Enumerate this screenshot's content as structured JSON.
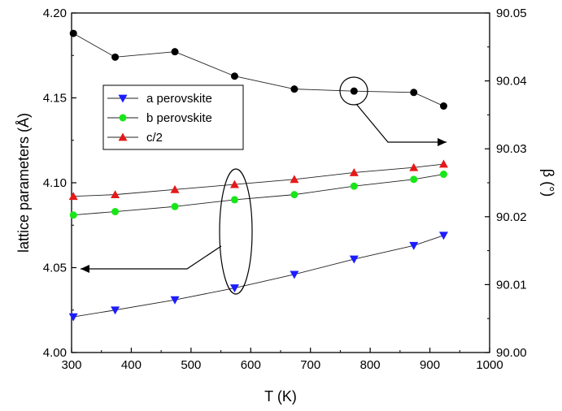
{
  "chart_data": {
    "type": "scatter",
    "x_axis": {
      "label": "T (K)",
      "range": [
        300,
        1000
      ],
      "ticks": [
        300,
        400,
        500,
        600,
        700,
        800,
        900,
        1000
      ]
    },
    "y_left": {
      "label": "lattice parameters (Å)",
      "range": [
        4.0,
        4.2
      ],
      "ticks": [
        "4.00",
        "4.05",
        "4.10",
        "4.15",
        "4.20"
      ]
    },
    "y_right": {
      "label": "β (°)",
      "range": [
        90.0,
        90.05
      ],
      "ticks": [
        "90.00",
        "90.01",
        "90.02",
        "90.03",
        "90.04",
        "90.05"
      ]
    },
    "grid": false,
    "legend_position": "upper-left",
    "series": [
      {
        "name": "a perovskite",
        "axis": "left",
        "marker": "triangle-down",
        "color": "#1c1cff",
        "x": [
          303,
          373,
          473,
          573,
          673,
          773,
          873,
          923
        ],
        "y": [
          4.021,
          4.025,
          4.031,
          4.038,
          4.046,
          4.055,
          4.063,
          4.069
        ]
      },
      {
        "name": "b perovskite",
        "axis": "left",
        "marker": "circle",
        "color": "#19e619",
        "x": [
          303,
          373,
          473,
          573,
          673,
          773,
          873,
          923
        ],
        "y": [
          4.081,
          4.083,
          4.086,
          4.09,
          4.093,
          4.098,
          4.102,
          4.105
        ]
      },
      {
        "name": "c/2",
        "axis": "left",
        "marker": "triangle-up",
        "color": "#e61919",
        "x": [
          303,
          373,
          473,
          573,
          673,
          773,
          873,
          923
        ],
        "y": [
          4.092,
          4.093,
          4.096,
          4.099,
          4.102,
          4.106,
          4.109,
          4.111
        ]
      },
      {
        "name": "",
        "axis": "right",
        "marker": "circle",
        "color": "#000000",
        "x": [
          303,
          373,
          473,
          573,
          673,
          773,
          873,
          923
        ],
        "y": [
          90.047,
          90.0435,
          90.0443,
          90.0407,
          90.0388,
          90.0385,
          90.0383,
          90.0363
        ]
      }
    ],
    "annotations": [
      {
        "shape": "circle",
        "target": "β series at T=773 K",
        "arrow_points_to": "right axis"
      },
      {
        "shape": "ellipse",
        "target": "lattice series at T=573 K",
        "arrow_points_to": "left axis"
      }
    ]
  }
}
